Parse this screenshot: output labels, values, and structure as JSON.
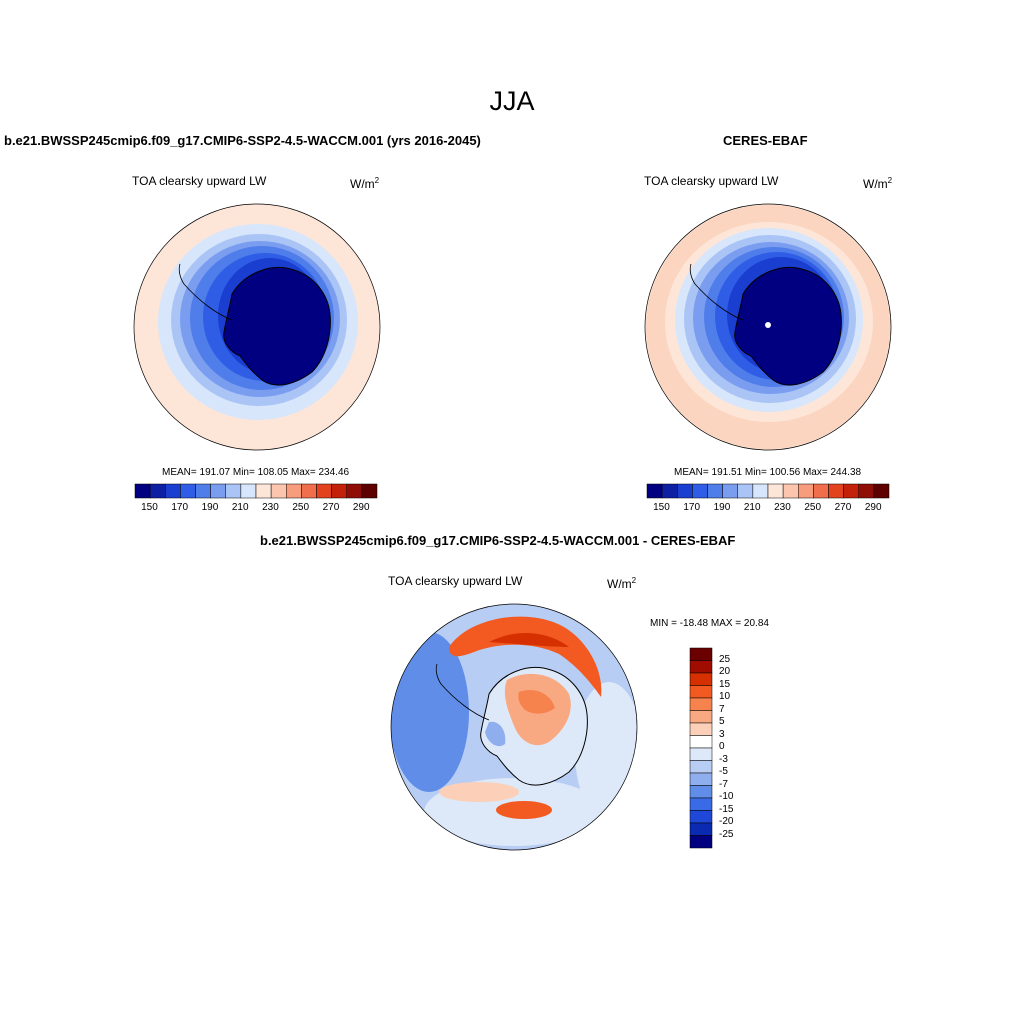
{
  "figure": {
    "title": "JJA",
    "panels": [
      {
        "name": "b.e21.BWSSP245cmip6.f09_g17.CMIP6-SSP2-4.5-WACCM.001 (yrs 2016-2045)",
        "variable": "TOA clearsky upward LW",
        "units_base": "W/m",
        "units_exp": "2",
        "stats": {
          "mean": "191.07",
          "min": "108.05",
          "max": "234.46"
        },
        "stats_text": "MEAN= 191.07   Min= 108.05   Max= 234.46"
      },
      {
        "name": "CERES-EBAF",
        "variable": "TOA clearsky upward LW",
        "units_base": "W/m",
        "units_exp": "2",
        "stats": {
          "mean": "191.51",
          "min": "100.56",
          "max": "244.38"
        },
        "stats_text": "MEAN= 191.51   Min= 100.56   Max= 244.38"
      },
      {
        "name": "b.e21.BWSSP245cmip6.f09_g17.CMIP6-SSP2-4.5-WACCM.001 - CERES-EBAF",
        "variable": "TOA clearsky upward LW",
        "units_base": "W/m",
        "units_exp": "2",
        "stats": {
          "min": "-18.48",
          "max": "20.84"
        },
        "stats_text": "MIN = -18.48  MAX =  20.84"
      }
    ],
    "colorbar_main": {
      "colors": [
        "#000080",
        "#0d1fa3",
        "#1a3ed0",
        "#2f5de6",
        "#4f7de9",
        "#7a9df0",
        "#aac4f6",
        "#d8e6fb",
        "#fde6d8",
        "#fbc6ad",
        "#f79c7c",
        "#f06e4b",
        "#e3421e",
        "#c3210a",
        "#8f0f06",
        "#5e0000"
      ],
      "tick_labels": [
        "150",
        "170",
        "190",
        "210",
        "230",
        "250",
        "270",
        "290"
      ]
    },
    "colorbar_diff": {
      "colors": [
        "#6a0000",
        "#a00d00",
        "#d63000",
        "#f25a22",
        "#f6834e",
        "#f8a982",
        "#fcd0b8",
        "#ffffff",
        "#dde8f8",
        "#b8cdf3",
        "#8faeee",
        "#5f8de8",
        "#3a6be6",
        "#1f48d8",
        "#0b2ab2",
        "#000080"
      ],
      "tick_labels": [
        "25",
        "20",
        "15",
        "10",
        "7",
        "5",
        "3",
        "0",
        "-3",
        "-5",
        "-7",
        "-10",
        "-15",
        "-20",
        "-25"
      ]
    }
  }
}
